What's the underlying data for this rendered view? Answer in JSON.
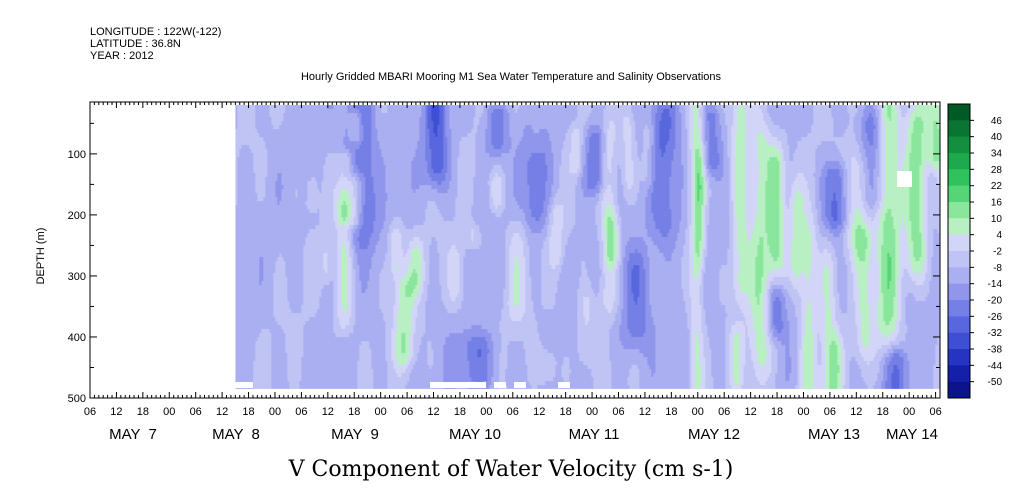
{
  "header": {
    "longitude_line": "LONGITUDE : 122W(-122)",
    "latitude_line": "LATITUDE : 36.8N",
    "year_line": "YEAR : 2012"
  },
  "chart_data": {
    "type": "heatmap",
    "title": "Hourly Gridded MBARI Mooring M1 Sea Water Temperature and Salinity Observations",
    "xlabel": "V Component of Water Velocity (cm s-1)",
    "ylabel": "DEPTH (m)",
    "y_inverted": true,
    "ylim": [
      500,
      15
    ],
    "xlim_hours": [
      "MAY 6 06h",
      "MAY 14 07h"
    ],
    "data_extent_hours": [
      "MAY 7 15h",
      "MAY 14 07h"
    ],
    "data_depth_range": [
      20,
      485
    ],
    "y_ticks": [
      "100",
      "200",
      "300",
      "400",
      "500"
    ],
    "x_hour_ticks": [
      "06",
      "12",
      "18",
      "00",
      "06",
      "12",
      "18",
      "00",
      "06",
      "12",
      "18",
      "00",
      "06",
      "12",
      "18",
      "00",
      "06",
      "12",
      "18",
      "00",
      "06",
      "12",
      "18",
      "00",
      "06",
      "12",
      "18",
      "00",
      "06",
      "12",
      "18",
      "00",
      "06"
    ],
    "date_labels": [
      "MAY  7",
      "MAY  8",
      "MAY  9",
      "MAY 10",
      "MAY 11",
      "MAY 12",
      "MAY 13",
      "MAY 14"
    ],
    "colorbar": {
      "levels": [
        "46",
        "40",
        "34",
        "28",
        "22",
        "16",
        "10",
        "4",
        "-2",
        "-8",
        "-14",
        "-20",
        "-26",
        "-32",
        "-38",
        "-44",
        "-50"
      ],
      "range": [
        -50,
        52
      ],
      "colors": [
        "#005a25",
        "#0a7532",
        "#138f3f",
        "#1ea94d",
        "#30c25d",
        "#55d576",
        "#8ae59d",
        "#b9f0c3",
        "#d2d5f7",
        "#bfc4f4",
        "#a9aff0",
        "#8f96ec",
        "#7480e6",
        "#5967de",
        "#3e4fd3",
        "#2535c2",
        "#1420a8",
        "#0b1488"
      ]
    },
    "field_description": "Mostly negative values (-20 to 0, light to medium blue) with positive streaks (green, up to ~20) concentrated near MAY 12-13"
  }
}
